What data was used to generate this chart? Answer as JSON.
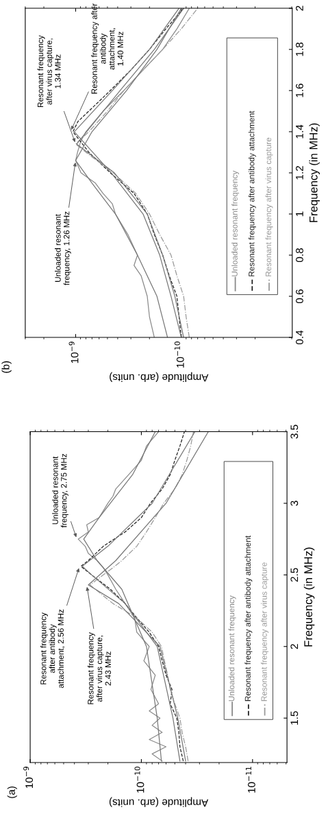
{
  "chart_data": [
    {
      "type": "line",
      "title": "(a)",
      "xlabel": "Amplitude (arb. units)",
      "ylabel": "Frequency (in MHz)",
      "log": "x",
      "ylim": [
        1.19,
        3.5
      ],
      "yticks": [
        1.5,
        2,
        2.5,
        3,
        3.5
      ],
      "xlim": [
        1e-09,
        4.9e-12
      ],
      "xticks": [
        {
          "value": 1e-09,
          "label": "10$^{−9}$"
        },
        {
          "value": 1e-10,
          "label": "10$^{−10}$"
        },
        {
          "value": 1e-11,
          "label": "10$^{−11}$"
        }
      ],
      "grid": false,
      "legend": "right",
      "marker": "none",
      "series": [
        {
          "name": "Unloaded resonant frequency",
          "color": "#8a8a8a",
          "line_style": "solid",
          "values": [
            1.2,
            1.25,
            1.3,
            1.35,
            1.4,
            1.45,
            1.5,
            1.55,
            1.6,
            1.7,
            1.8,
            1.9,
            2.0,
            2.1,
            2.2,
            2.3,
            2.4,
            2.5,
            2.55,
            2.6,
            2.65,
            2.7,
            2.75,
            2.8,
            2.85,
            2.9,
            3.0,
            3.05,
            3.1,
            3.2,
            3.3,
            3.4,
            3.5
          ],
          "x": [
            6.5e-11,
            8e-11,
            6e-11,
            8.5e-11,
            6.5e-11,
            8e-11,
            6.8e-11,
            8.5e-11,
            7e-11,
            8.2e-11,
            7.5e-11,
            9.5e-11,
            8.5e-11,
            1.1e-10,
            1.15e-10,
            1.4e-10,
            1.7e-10,
            2e-10,
            2.2e-10,
            2.5e-10,
            3e-10,
            3.2e-10,
            3.7e-10,
            3e-10,
            3.1e-10,
            2.4e-10,
            2e-10,
            1.8e-10,
            1.7e-10,
            1.3e-10,
            1e-10,
            9e-11,
            7e-11
          ]
        },
        {
          "name": "Resonant frequency after antibody attachment",
          "color": "#222222",
          "line_style": "dashed",
          "values": [
            1.2,
            1.3,
            1.4,
            1.5,
            1.6,
            1.7,
            1.8,
            1.9,
            2.0,
            2.1,
            2.2,
            2.3,
            2.4,
            2.5,
            2.56,
            2.6,
            2.7,
            2.8,
            2.9,
            3.0,
            3.1,
            3.2,
            3.3,
            3.4,
            3.5
          ],
          "x": [
            4.2e-11,
            4.5e-11,
            4.6e-11,
            4.8e-11,
            5.5e-11,
            5.3e-11,
            6e-11,
            6.5e-11,
            7e-11,
            8.5e-11,
            1.1e-10,
            1.4e-10,
            1.9e-10,
            2.8e-10,
            3.5e-10,
            3e-10,
            2.2e-10,
            1.4e-10,
            1e-10,
            8.3e-11,
            6.5e-11,
            5.5e-11,
            5e-11,
            4.5e-11,
            4.1e-11
          ]
        },
        {
          "name": "Resonant frequency after virus capture",
          "color": "#9a9a9a",
          "line_style": "dashdot",
          "values": [
            1.2,
            1.3,
            1.4,
            1.5,
            1.6,
            1.7,
            1.8,
            1.9,
            2.0,
            2.1,
            2.2,
            2.3,
            2.4,
            2.43,
            2.5,
            2.55,
            2.6,
            2.7,
            2.8,
            2.9,
            3.0,
            3.1,
            3.2,
            3.3,
            3.4,
            3.5
          ],
          "x": [
            3.8e-11,
            4e-11,
            4.3e-11,
            4.5e-11,
            5e-11,
            5.5e-11,
            5.8e-11,
            6.2e-11,
            6.6e-11,
            8e-11,
            1.1e-10,
            1.8e-10,
            2.6e-10,
            2.9e-10,
            2.2e-10,
            1.8e-10,
            1.5e-10,
            1.1e-10,
            9e-11,
            7.5e-11,
            6.3e-11,
            5e-11,
            4.3e-11,
            3.9e-11,
            3.6e-11,
            3.4e-11
          ]
        },
        {
          "color": "#777777",
          "line_style": "solid",
          "values": [
            1.2,
            1.5,
            2.0,
            2.4,
            2.6,
            2.75,
            2.9,
            3.2,
            3.5
          ],
          "x": [
            6.6e-11,
            7.2e-11,
            9e-11,
            1.5e-10,
            2.5e-10,
            3.3e-10,
            2.4e-10,
            1.2e-10,
            7.5e-11
          ]
        },
        {
          "color": "#777777",
          "line_style": "solid",
          "values": [
            1.2,
            1.5,
            2.0,
            2.3,
            2.5,
            2.56,
            2.7,
            3.0,
            3.5
          ],
          "x": [
            4.5e-11,
            5.2e-11,
            7.2e-11,
            1.4e-10,
            2.8e-10,
            3.4e-10,
            2e-10,
            8e-11,
            3.3e-11
          ]
        },
        {
          "color": "#777777",
          "line_style": "solid",
          "values": [
            1.2,
            1.5,
            2.0,
            2.3,
            2.43,
            2.6,
            3.0,
            3.5
          ],
          "x": [
            4e-11,
            4.7e-11,
            6.8e-11,
            1.6e-10,
            3e-10,
            1.7e-10,
            6e-11,
            2.5e-11
          ]
        }
      ],
      "annotations": [
        {
          "text": "Resonant frequency\nafter antibody\nattachment, 2.56 MHz",
          "x": 3.6e-10,
          "y": 2.56
        },
        {
          "text": "Resonant frequency\nafter virus capture,\n2.43 MHz",
          "x": 3.1e-10,
          "y": 2.43
        },
        {
          "text": "Unloaded resonant\nfrequency, 2.75 MHz",
          "x": 3.8e-10,
          "y": 2.75
        }
      ]
    },
    {
      "type": "line",
      "title": "(b)",
      "xlabel": "Amplitude (arb. units)",
      "ylabel": "Frequency (in MHz)",
      "log": "x",
      "ylim": [
        0.4,
        2
      ],
      "yticks": [
        0.4,
        0.6,
        0.8,
        1,
        1.2,
        1.4,
        1.6,
        1.8,
        2
      ],
      "xlim": [
        3e-09,
        8.9e-12
      ],
      "xticks": [
        {
          "value": 1e-09,
          "label": "10$^{−9}$"
        },
        {
          "value": 1e-10,
          "label": "10$^{−10}$"
        }
      ],
      "grid": false,
      "legend": "right",
      "marker": "none",
      "series": [
        {
          "name": "Unloaded resonant frequency",
          "color": "#8a8a8a",
          "line_style": "solid",
          "values": [
            0.4,
            0.5,
            0.6,
            0.7,
            0.75,
            0.8,
            0.9,
            1.0,
            1.05,
            1.1,
            1.15,
            1.2,
            1.26,
            1.3,
            1.35,
            1.4,
            1.5,
            1.6,
            1.7,
            1.8,
            1.9,
            2.0
          ],
          "x": [
            1.8e-10,
            2e-10,
            2.1e-10,
            2.4e-10,
            2.8e-10,
            2.6e-10,
            3.2e-10,
            4.2e-10,
            4.5e-10,
            5.5e-10,
            6.5e-10,
            8.9e-10,
            1e-09,
            9.6e-10,
            9e-10,
            8e-10,
            5.5e-10,
            3.5e-10,
            2.3e-10,
            1.5e-10,
            1.1e-10,
            8.4e-11
          ]
        },
        {
          "name": "Resonant frequency after antibody attachment",
          "color": "#222222",
          "line_style": "dashed",
          "values": [
            0.4,
            0.5,
            0.6,
            0.7,
            0.8,
            0.9,
            1.0,
            1.1,
            1.2,
            1.3,
            1.4,
            1.45,
            1.5,
            1.6,
            1.7,
            1.8,
            1.9,
            2.0
          ],
          "x": [
            1e-10,
            1.05e-10,
            1.1e-10,
            1.3e-10,
            1.5e-10,
            1.8e-10,
            2.1e-10,
            2.8e-10,
            4.7e-10,
            7.5e-10,
            1.06e-09,
            9.5e-10,
            7.5e-10,
            4.7e-10,
            3e-10,
            2e-10,
            1.4e-10,
            9.5e-11
          ]
        },
        {
          "name": "Resonant frequency after virus capture",
          "color": "#9a9a9a",
          "line_style": "dashdot",
          "values": [
            0.4,
            0.5,
            0.6,
            0.7,
            0.8,
            0.9,
            1.0,
            1.1,
            1.2,
            1.3,
            1.34,
            1.4,
            1.5,
            1.6,
            1.7,
            1.8,
            1.9,
            2.0
          ],
          "x": [
            8.4e-11,
            9e-11,
            9.5e-11,
            1.1e-10,
            1.25e-10,
            1.6e-10,
            2e-10,
            2.7e-10,
            4.4e-10,
            8e-10,
            1e-09,
            7.5e-10,
            5e-10,
            3.5e-10,
            2.3e-10,
            1.5e-10,
            1e-10,
            7e-11
          ]
        },
        {
          "color": "#777777",
          "line_style": "solid",
          "values": [
            0.4,
            0.6,
            0.8,
            1.0,
            1.15,
            1.26,
            1.4,
            1.6,
            1.8,
            2.0
          ],
          "x": [
            1.35e-10,
            1.7e-10,
            2.6e-10,
            4.2e-10,
            7e-10,
            1e-09,
            7e-10,
            3.3e-10,
            1.7e-10,
            1e-10
          ]
        },
        {
          "color": "#777777",
          "line_style": "solid",
          "values": [
            0.4,
            0.6,
            0.8,
            1.0,
            1.2,
            1.4,
            1.6,
            1.8,
            2.0
          ],
          "x": [
            1e-10,
            1.25e-10,
            1.6e-10,
            2.3e-10,
            4.6e-10,
            1.03e-09,
            4.5e-10,
            2e-10,
            1.05e-10
          ]
        },
        {
          "color": "#777777",
          "line_style": "solid",
          "values": [
            0.4,
            0.6,
            0.8,
            1.0,
            1.2,
            1.34,
            1.6,
            1.8,
            2.0
          ],
          "x": [
            9.5e-11,
            1.15e-10,
            1.5e-10,
            2.1e-10,
            4.3e-10,
            9.8e-10,
            3.8e-10,
            1.8e-10,
            9.5e-11
          ]
        }
      ],
      "annotations": [
        {
          "text": "Unloaded resonant\nfrequency, 1.26 MHz",
          "x": 1e-09,
          "y": 1.26
        },
        {
          "text": "Resonant frequency\nafter virus capture,\n1.34 MHz",
          "x": 1e-09,
          "y": 1.34
        },
        {
          "text": "Resonant frequency after\nantibody\nattachment,\n1.40 MHz",
          "x": 1.12e-09,
          "y": 1.4
        }
      ]
    }
  ]
}
